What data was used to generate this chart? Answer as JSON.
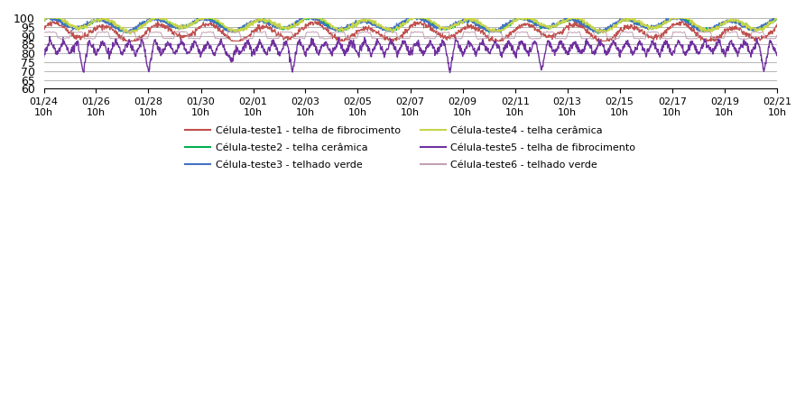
{
  "ylim": [
    60,
    100
  ],
  "yticks": [
    60,
    65,
    70,
    75,
    80,
    85,
    90,
    95,
    100
  ],
  "x_labels": [
    "01/24\n10h",
    "01/26\n10h",
    "01/28\n10h",
    "01/30\n10h",
    "02/01\n10h",
    "02/03\n10h",
    "02/05\n10h",
    "02/07\n10h",
    "02/09\n10h",
    "02/11\n10h",
    "02/13\n10h",
    "02/15\n10h",
    "02/17\n10h",
    "02/19\n10h",
    "02/21\n10h"
  ],
  "series_colors": [
    "#c0504d",
    "#00b050",
    "#4472c4",
    "#c8d44b",
    "#7030a0",
    "#c4a0b4"
  ],
  "series_names": [
    "Célula-teste1 - telha de fibrocimento",
    "Célula-teste2 - telha cerâmica",
    "Célula-teste3 - telhado verde",
    "Célula-teste4 - telha cerâmica",
    "Célula-teste5 - telha de fibrocimento",
    "Célula-teste6 - telhado verde"
  ],
  "n_points": 2000
}
